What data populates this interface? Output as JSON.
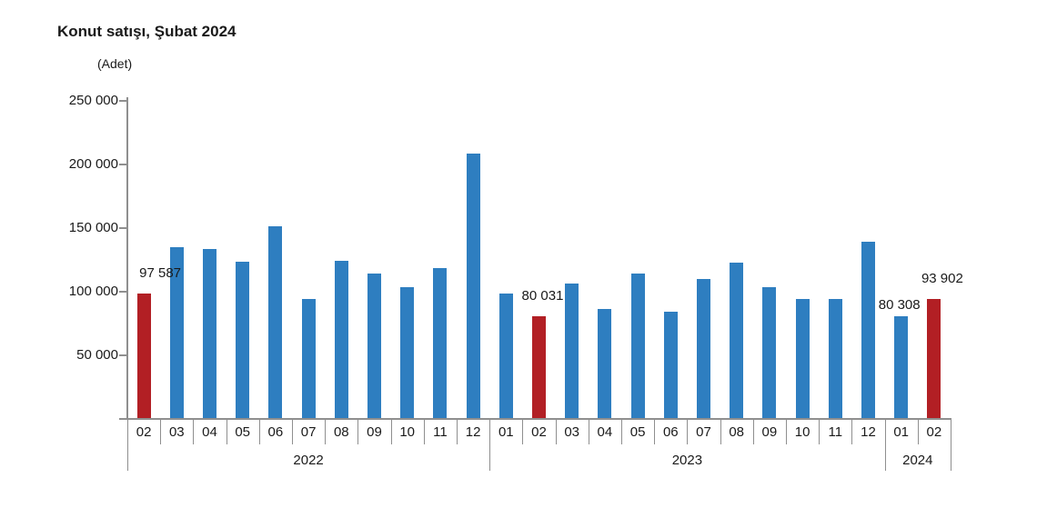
{
  "title": "Konut satışı, Şubat 2024",
  "unit_label": "(Adet)",
  "colors": {
    "bar_default": "#2e7ec0",
    "bar_highlight": "#b21f24",
    "axis": "#8f8f8f",
    "text": "#1a1a1a"
  },
  "chart_data": {
    "type": "bar",
    "title": "Konut satışı, Şubat 2024",
    "ylabel": "(Adet)",
    "xlabel": "",
    "grid": false,
    "legend": "none",
    "ylim": [
      0,
      250000
    ],
    "ytick_step": 50000,
    "yticks": [
      {
        "value": 250000,
        "label": "250 000"
      },
      {
        "value": 200000,
        "label": "200 000"
      },
      {
        "value": 150000,
        "label": "150 000"
      },
      {
        "value": 100000,
        "label": "100 000"
      },
      {
        "value": 50000,
        "label": "50 000"
      }
    ],
    "categories": [
      "02",
      "03",
      "04",
      "05",
      "06",
      "07",
      "08",
      "09",
      "10",
      "11",
      "12",
      "01",
      "02",
      "03",
      "04",
      "05",
      "06",
      "07",
      "08",
      "09",
      "10",
      "11",
      "12",
      "01",
      "02"
    ],
    "year_groups": [
      {
        "label": "2022",
        "months": 11
      },
      {
        "label": "2023",
        "months": 12
      },
      {
        "label": "2024",
        "months": 2
      }
    ],
    "values": [
      97587,
      134170,
      133058,
      122768,
      150509,
      93902,
      123491,
      113402,
      102660,
      117806,
      207963,
      97708,
      80031,
      105476,
      85652,
      113587,
      83636,
      109548,
      122091,
      102656,
      93761,
      93514,
      138577,
      80308,
      93902
    ],
    "highlighted_indices": [
      0,
      12,
      24
    ],
    "data_labels": [
      {
        "index": 0,
        "text": "97 587"
      },
      {
        "index": 12,
        "text": "80 031"
      },
      {
        "index": 23,
        "text": "80 308"
      },
      {
        "index": 24,
        "text": "93 902"
      }
    ]
  }
}
